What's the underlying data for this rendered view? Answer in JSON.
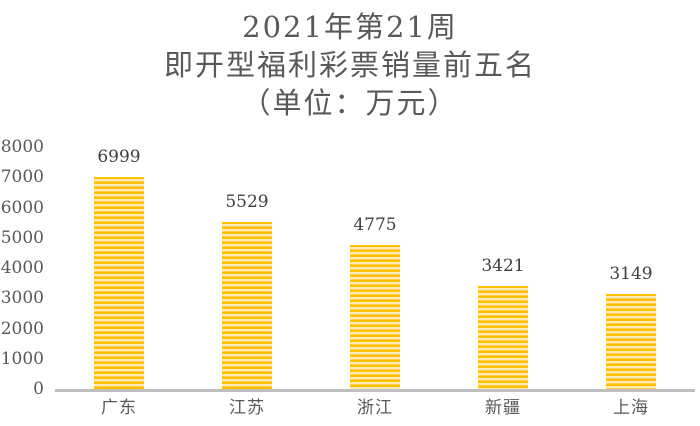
{
  "chart_data": {
    "type": "bar",
    "title": "2021年第21周 即开型福利彩票销量前五名 （单位：万元）",
    "title_lines": [
      "2021年第21周",
      "即开型福利彩票销量前五名",
      "（单位：万元）"
    ],
    "categories": [
      "广东",
      "江苏",
      "浙江",
      "新疆",
      "上海"
    ],
    "values": [
      6999,
      5529,
      4775,
      3421,
      3149
    ],
    "data_labels": [
      "6999",
      "5529",
      "4775",
      "3421",
      "3149"
    ],
    "xlabel": "",
    "ylabel": "",
    "ylim": [
      0,
      8000
    ],
    "ytick_interval": 1000,
    "yticks": [
      0,
      1000,
      2000,
      3000,
      4000,
      5000,
      6000,
      7000,
      8000
    ],
    "grid": false,
    "legend": false,
    "bar_pattern": "light-horizontal-stripes",
    "colors": {
      "bar_gold": "#FFC000",
      "bar_stripe_mid": "#FFDF8C",
      "bar_stripe_light": "#FFF8E6",
      "axis_line": "#BFBFBF",
      "title_text": "#595959",
      "value_label_text": "#404040",
      "tick_label_text": "#595959",
      "background": "#FFFFFF"
    }
  }
}
